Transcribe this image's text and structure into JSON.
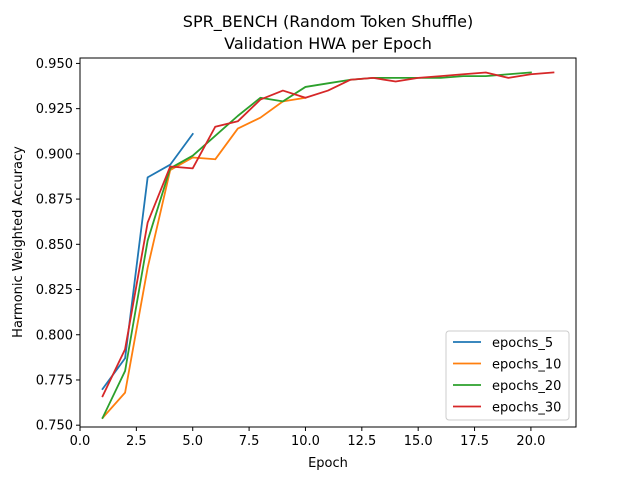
{
  "chart_data": {
    "type": "line",
    "title": "SPR_BENCH (Random Token Shuffle)",
    "subtitle": "Validation HWA per Epoch",
    "xlabel": "Epoch",
    "ylabel": "Harmonic Weighted Accuracy",
    "xlim": [
      0,
      22
    ],
    "ylim": [
      0.749,
      0.953
    ],
    "x_ticks": [
      "0.0",
      "2.5",
      "5.0",
      "7.5",
      "10.0",
      "12.5",
      "15.0",
      "17.5",
      "20.0"
    ],
    "y_ticks": [
      "0.750",
      "0.775",
      "0.800",
      "0.825",
      "0.850",
      "0.875",
      "0.900",
      "0.925",
      "0.950"
    ],
    "grid": false,
    "legend_position": "lower-right",
    "series": [
      {
        "name": "epochs_5",
        "color": "#1f77b4",
        "x": [
          1,
          2,
          3,
          4,
          5
        ],
        "y": [
          0.77,
          0.787,
          0.887,
          0.894,
          0.911
        ]
      },
      {
        "name": "epochs_10",
        "color": "#ff7f0e",
        "x": [
          1,
          2,
          3,
          4,
          5,
          6,
          7,
          8,
          9,
          10
        ],
        "y": [
          0.754,
          0.768,
          0.837,
          0.891,
          0.898,
          0.897,
          0.914,
          0.92,
          0.929,
          0.931
        ]
      },
      {
        "name": "epochs_20",
        "color": "#2ca02c",
        "x": [
          1,
          2,
          3,
          4,
          5,
          6,
          7,
          8,
          9,
          10,
          11,
          12,
          13,
          14,
          15,
          16,
          17,
          18,
          19,
          20
        ],
        "y": [
          0.754,
          0.78,
          0.852,
          0.892,
          0.899,
          0.91,
          0.921,
          0.931,
          0.929,
          0.937,
          0.939,
          0.941,
          0.942,
          0.942,
          0.942,
          0.942,
          0.943,
          0.943,
          0.944,
          0.945
        ]
      },
      {
        "name": "epochs_30",
        "color": "#d62728",
        "x": [
          1,
          2,
          3,
          4,
          5,
          6,
          7,
          8,
          9,
          10,
          11,
          12,
          13,
          14,
          15,
          16,
          17,
          18,
          19,
          20,
          21
        ],
        "y": [
          0.766,
          0.792,
          0.862,
          0.893,
          0.892,
          0.915,
          0.918,
          0.93,
          0.935,
          0.931,
          0.935,
          0.941,
          0.942,
          0.94,
          0.942,
          0.943,
          0.944,
          0.945,
          0.942,
          0.944,
          0.945
        ]
      }
    ]
  }
}
